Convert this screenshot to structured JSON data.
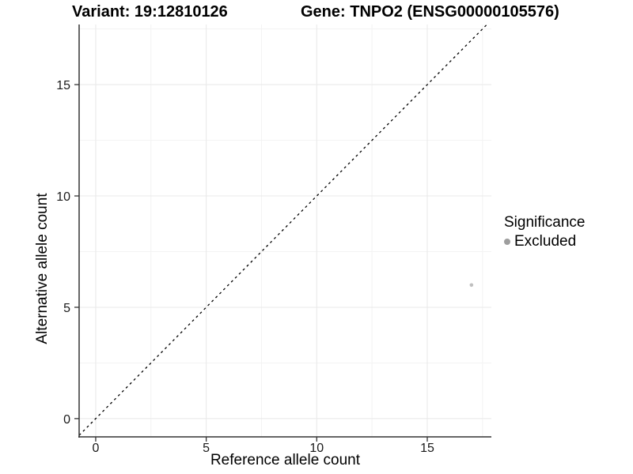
{
  "header": {
    "variant_title": "Variant: 19:12810126",
    "gene_title": "Gene: TNPO2 (ENSG00000105576)"
  },
  "chart_data": {
    "type": "scatter",
    "xlabel": "Reference allele count",
    "ylabel": "Alternative allele count",
    "xlim": [
      -0.75,
      17.9
    ],
    "ylim": [
      -0.82,
      17.7
    ],
    "xticks": [
      0,
      5,
      10,
      15
    ],
    "yticks": [
      0,
      5,
      10,
      15
    ],
    "xticks_minor": [
      2.5,
      7.5,
      12.5,
      17.5
    ],
    "yticks_minor": [
      2.5,
      7.5,
      12.5,
      17.5
    ],
    "grid": true,
    "points": [
      {
        "x": 17,
        "y": 6,
        "series": "Excluded"
      }
    ],
    "point_style": {
      "color": "#bfbfbf",
      "radius": 2.3
    },
    "reference_line": {
      "equation": "y = x",
      "style": "dashed",
      "color": "#000000"
    },
    "legend": {
      "position": "right",
      "title": "Significance",
      "entries": [
        {
          "label": "Excluded",
          "color": "#9e9e9e",
          "marker": "circle"
        }
      ]
    }
  },
  "colors": {
    "background": "#ffffff",
    "axis_line": "#333333",
    "tick_label": "#1a1a1a",
    "grid_major": "#e8e8e8",
    "grid_minor": "#f3f3f3",
    "text": "#000000"
  }
}
